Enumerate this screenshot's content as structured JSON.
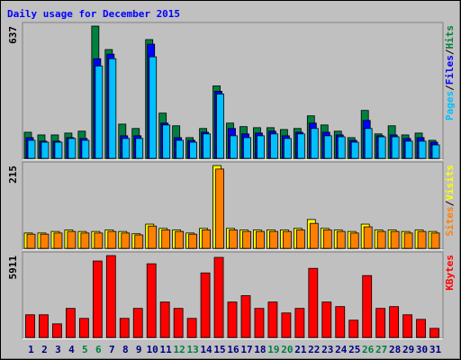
{
  "chart_data": {
    "type": "bar",
    "title": "Daily usage for December 2015",
    "categories": [
      "1",
      "2",
      "3",
      "4",
      "5",
      "6",
      "7",
      "8",
      "9",
      "10",
      "11",
      "12",
      "13",
      "14",
      "15",
      "16",
      "17",
      "18",
      "19",
      "20",
      "21",
      "22",
      "23",
      "24",
      "25",
      "26",
      "27",
      "28",
      "29",
      "30",
      "31"
    ],
    "category_colors": [
      "#000080",
      "#000080",
      "#000080",
      "#000080",
      "#008040",
      "#008040",
      "#000080",
      "#000080",
      "#000080",
      "#000080",
      "#000080",
      "#008040",
      "#008040",
      "#000080",
      "#000080",
      "#000080",
      "#000080",
      "#000080",
      "#008040",
      "#008040",
      "#000080",
      "#000080",
      "#000080",
      "#000080",
      "#000080",
      "#008040",
      "#008040",
      "#000080",
      "#000080",
      "#000080",
      "#000080"
    ],
    "legend_separator": "/",
    "panels": [
      {
        "ylim": [
          0,
          637
        ],
        "yticks": [
          637
        ],
        "series": [
          {
            "name": "Hits",
            "color": "#008040",
            "values": [
              126,
              113,
              113,
              122,
              131,
              637,
              524,
              165,
              144,
              572,
              218,
              157,
              100,
              144,
              349,
              170,
              153,
              148,
              148,
              139,
              144,
              205,
              161,
              131,
              100,
              231,
              118,
              157,
              113,
              122,
              87
            ]
          },
          {
            "name": "Files",
            "color": "#0000ff",
            "values": [
              100,
              83,
              83,
              100,
              96,
              480,
              502,
              109,
              109,
              550,
              170,
              100,
              87,
              126,
              323,
              144,
              118,
              122,
              131,
              109,
              126,
              170,
              126,
              113,
              87,
              183,
              109,
              113,
              96,
              100,
              78
            ]
          },
          {
            "name": "Pages",
            "color": "#00c0ff",
            "values": [
              87,
              78,
              78,
              96,
              87,
              445,
              480,
              96,
              96,
              489,
              161,
              87,
              78,
              118,
              310,
              109,
              100,
              109,
              118,
              96,
              118,
              144,
              109,
              104,
              78,
              144,
              104,
              104,
              83,
              83,
              65
            ]
          }
        ]
      },
      {
        "ylim": [
          0,
          215
        ],
        "yticks": [
          215
        ],
        "series": [
          {
            "name": "Visits",
            "color": "#ffff00",
            "values": [
              40,
              40,
              44,
              48,
              44,
              44,
              48,
              44,
              38,
              63,
              52,
              48,
              40,
              52,
              215,
              52,
              48,
              48,
              48,
              48,
              52,
              75,
              52,
              48,
              44,
              63,
              48,
              48,
              44,
              48,
              44
            ]
          },
          {
            "name": "Sites",
            "color": "#ff8000",
            "values": [
              37,
              37,
              40,
              44,
              40,
              40,
              44,
              40,
              35,
              58,
              48,
              44,
              37,
              48,
              206,
              48,
              44,
              44,
              44,
              44,
              48,
              65,
              48,
              44,
              40,
              56,
              44,
              44,
              40,
              44,
              40
            ]
          }
        ]
      },
      {
        "ylim": [
          0,
          5911
        ],
        "yticks": [
          5911
        ],
        "series": [
          {
            "name": "KBytes",
            "color": "#ff0000",
            "values": [
              1640,
              1640,
              985,
              2100,
              1380,
              5520,
              5911,
              1380,
              2100,
              5320,
              2560,
              2100,
              1380,
              4660,
              5780,
              2560,
              3020,
              2100,
              2560,
              1770,
              2100,
              4990,
              2560,
              2230,
              1250,
              4470,
              2100,
              2230,
              1640,
              1310,
              660
            ]
          }
        ]
      }
    ]
  }
}
